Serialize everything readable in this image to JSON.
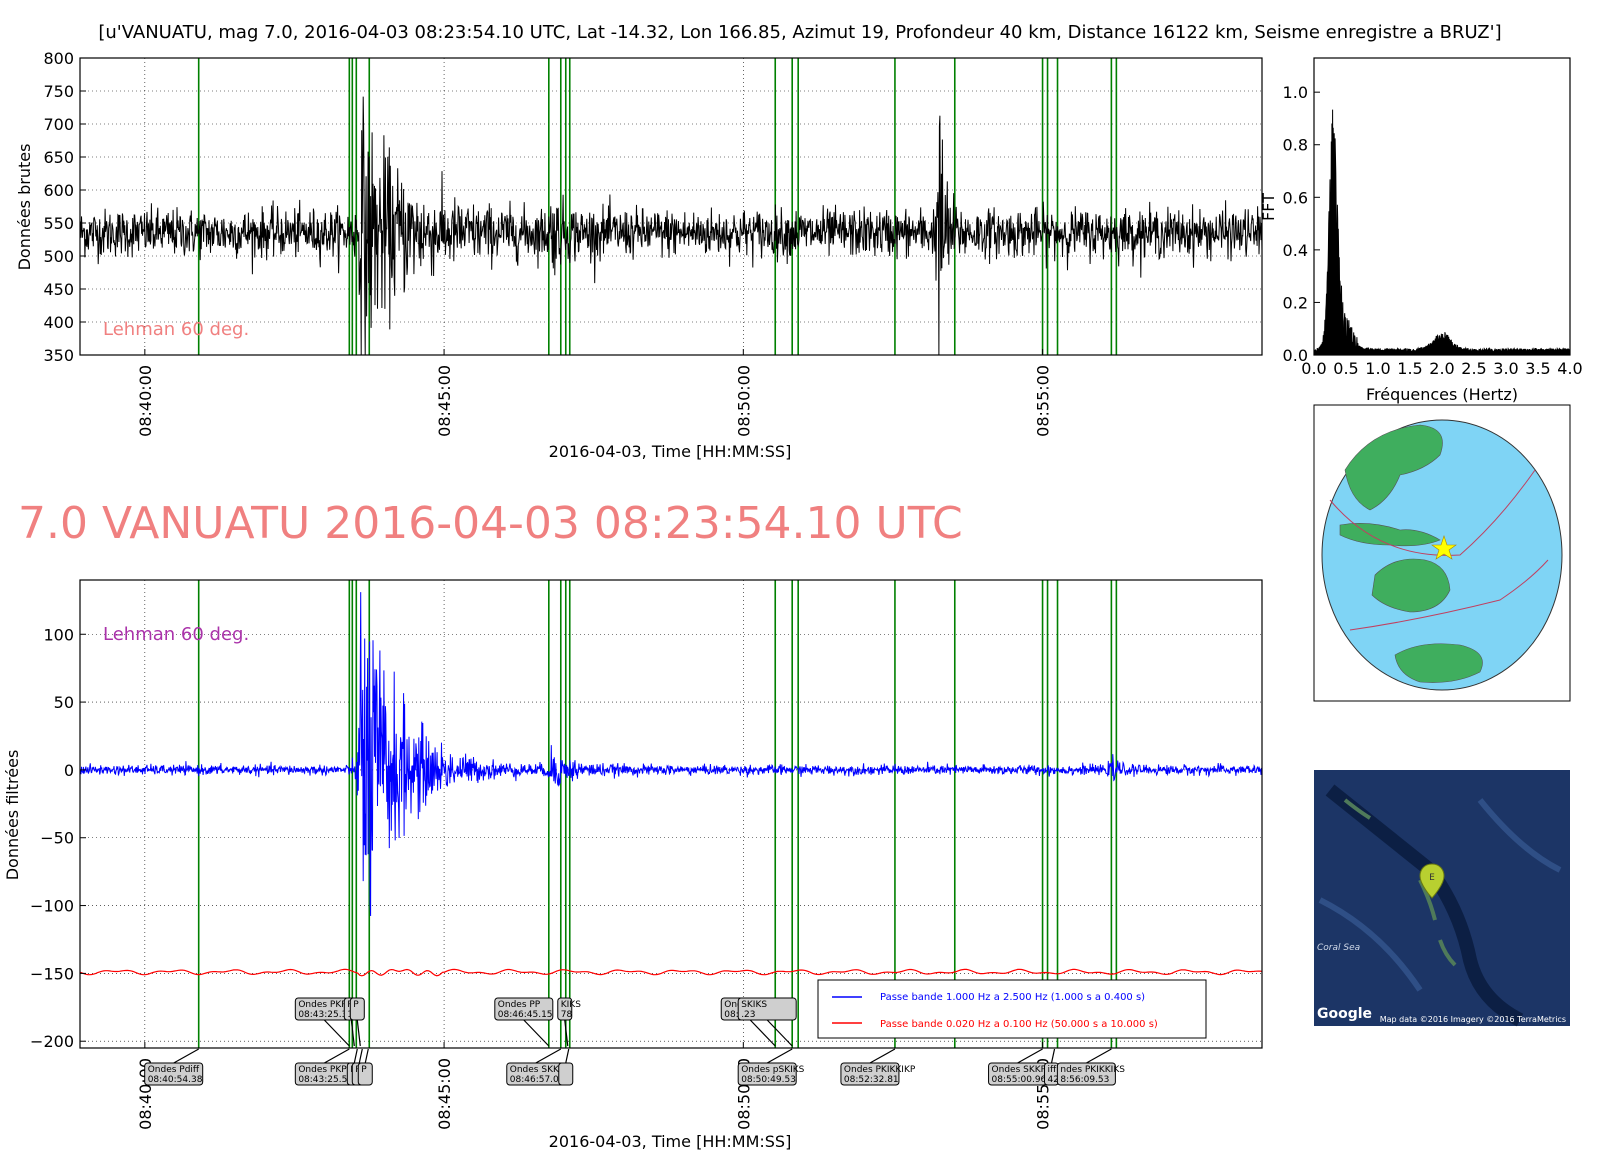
{
  "header": {
    "title": "[u'VANUATU, mag 7.0, 2016-04-03 08:23:54.10 UTC, Lat -14.32, Lon 166.85, Azimut  19, Profondeur 40 km, Distance 16122 km, Seisme enregistre a BRUZ']",
    "big_title": "7.0 VANUATU 2016-04-03 08:23:54.10 UTC",
    "big_title_color": "#f08080"
  },
  "colors": {
    "phase_line": "#008000",
    "raw": "#000000",
    "filtered_blue": "#0000ff",
    "filtered_red": "#ff0000",
    "lehman_top": "#f08080",
    "lehman_bottom": "#aa33aa"
  },
  "chart_data": [
    {
      "id": "raw",
      "type": "line",
      "ylabel": "Données brutes",
      "xlabel": "2016-04-03, Time [HH:MM:SS]",
      "xlim": [
        "08:38:55",
        "08:58:40"
      ],
      "ylim": [
        350,
        800
      ],
      "yticks": [
        "350",
        "400",
        "450",
        "500",
        "550",
        "600",
        "650",
        "700",
        "750",
        "800"
      ],
      "xticks": [
        "08:40:00",
        "08:45:00",
        "08:50:00",
        "08:55:00"
      ],
      "grid": true,
      "annotation": "Lehman 60 deg.",
      "baseline": 535,
      "noise_amplitude": 30,
      "events": [
        {
          "t": "08:43:35",
          "amp": 140,
          "decay": 40
        },
        {
          "t": "08:46:45",
          "amp": 25,
          "decay": 15
        },
        {
          "t": "08:53:15",
          "amp": 200,
          "decay": 6
        }
      ]
    },
    {
      "id": "fft",
      "type": "line",
      "ylabel": "FFT",
      "xlabel": "Fréquences (Hertz)",
      "xlim": [
        0.0,
        4.0
      ],
      "ylim": [
        0.0,
        1.13
      ],
      "xticks": [
        "0.0",
        "0.5",
        "1.0",
        "1.5",
        "2.0",
        "2.5",
        "3.0",
        "3.5",
        "4.0"
      ],
      "yticks": [
        "0.0",
        "0.2",
        "0.4",
        "0.6",
        "0.8",
        "1.0"
      ],
      "peak_freq": 0.3,
      "peak_value": 0.91,
      "secondary_peak": {
        "freq": 2.0,
        "value": 0.07
      }
    },
    {
      "id": "filtered",
      "type": "line",
      "ylabel": "Données filtrées",
      "xlabel": "2016-04-03, Time [HH:MM:SS]",
      "xlim": [
        "08:38:55",
        "08:58:40"
      ],
      "ylim": [
        -205,
        140
      ],
      "yticks": [
        "−200",
        "−150",
        "−100",
        "−50",
        "0",
        "50",
        "100"
      ],
      "xticks": [
        "08:40:00",
        "08:45:00",
        "08:50:00",
        "08:55:00"
      ],
      "grid": true,
      "annotation": "Lehman 60 deg.",
      "series": [
        {
          "name": "Passe bande 1.000 Hz a 2.500 Hz (1.000 s a 0.400 s)",
          "color": "#0000ff",
          "baseline": 0
        },
        {
          "name": "Passe bande 0.020 Hz a 0.100 Hz (50.000 s a 10.000 s)",
          "color": "#ff0000",
          "baseline": -149
        }
      ],
      "events": [
        {
          "t": "08:43:35",
          "amp": 130,
          "decay": 35
        },
        {
          "t": "08:46:45",
          "amp": 12,
          "decay": 20
        },
        {
          "t": "08:56:10",
          "amp": 12,
          "decay": 4
        }
      ],
      "legend_position": "lower-right"
    }
  ],
  "phases": [
    "08:40:54",
    "08:43:25",
    "08:43:28",
    "08:43:32",
    "08:43:45",
    "08:46:45",
    "08:46:57",
    "08:47:02",
    "08:47:06",
    "08:50:32",
    "08:50:49",
    "08:50:55",
    "08:52:32",
    "08:53:32",
    "08:55:00",
    "08:55:05",
    "08:55:15",
    "08:56:09",
    "08:56:14"
  ],
  "phase_labels_upper": [
    {
      "lines": [
        "Ondes PKP",
        "08:43:25.38"
      ],
      "t": "08:43:25"
    },
    {
      "lines": [
        "P",
        "1"
      ],
      "t": "08:43:30"
    },
    {
      "lines": [
        "P",
        ""
      ],
      "t": "08:43:36"
    },
    {
      "lines": [
        "Ondes PP",
        "08:46:45.15"
      ],
      "t": "08:46:45"
    },
    {
      "lines": [
        "KIKS",
        "78"
      ],
      "t": "08:47:04"
    },
    {
      "lines": [
        "Ondes SKIKS",
        "08:50:32.12"
      ],
      "t": "08:50:32"
    },
    {
      "lines": [
        "SKIKS",
        ".23"
      ],
      "t": "08:50:49"
    }
  ],
  "phase_labels_lower": [
    {
      "lines": [
        "Ondes Pdiff",
        "08:40:54.38"
      ],
      "t": "08:40:54"
    },
    {
      "lines": [
        "Ondes PKP",
        "08:43:25.53"
      ],
      "t": "08:43:25"
    },
    {
      "lines": [
        "P",
        ""
      ],
      "t": "08:43:33"
    },
    {
      "lines": [
        "P",
        ""
      ],
      "t": "08:43:38"
    },
    {
      "lines": [
        "P",
        ""
      ],
      "t": "08:43:44"
    },
    {
      "lines": [
        "Ondes SKKP",
        "08:46:57.07"
      ],
      "t": "08:46:57"
    },
    {
      "lines": [
        "",
        ""
      ],
      "t": "08:47:05"
    },
    {
      "lines": [
        "Ondes pSKIKS",
        "08:50:49.53"
      ],
      "t": "08:50:49"
    },
    {
      "lines": [
        "Ondes PKIKKIKP",
        "08:52:32.81"
      ],
      "t": "08:52:32"
    },
    {
      "lines": [
        "Ondes SKKP",
        "08:55:00.96"
      ],
      "t": "08:55:00"
    },
    {
      "lines": [
        "iff",
        "42"
      ],
      "t": "08:55:12"
    },
    {
      "lines": [
        "ndes PKIKKIKS",
        "8:56:09.53"
      ],
      "t": "08:56:09"
    }
  ],
  "google_map": {
    "coral_sea_label": "Coral Sea",
    "logo_text": "Google",
    "credits": "Map data ©2016  Imagery ©2016 TerraMetrics",
    "marker_letter": "E"
  },
  "globe": {
    "marker": "star"
  }
}
